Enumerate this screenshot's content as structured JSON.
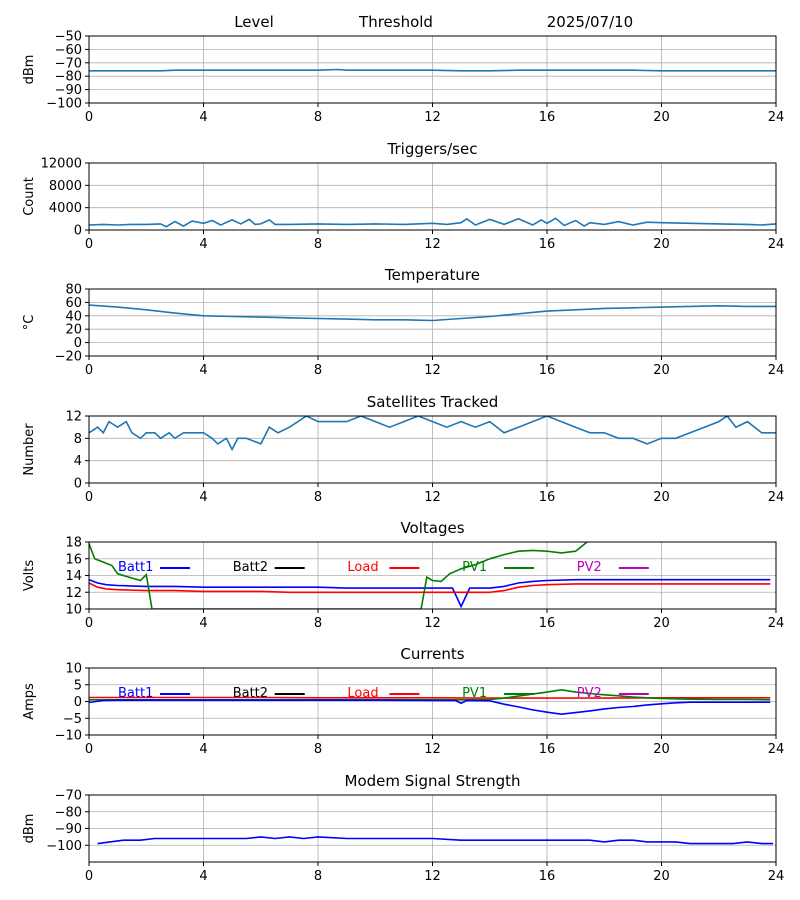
{
  "header": {
    "left": "Level",
    "middle": "Threshold",
    "right": "2025/07/10"
  },
  "x_ticks": [
    "0",
    "4",
    "8",
    "12",
    "16",
    "20",
    "24"
  ],
  "chart_data": [
    {
      "type": "line",
      "id": "level",
      "title": "",
      "ylabel": "dBm",
      "xlim": [
        0,
        24
      ],
      "ylim": [
        -100,
        -50
      ],
      "yticks": [
        -100,
        -90,
        -80,
        -70,
        -60,
        -50
      ],
      "ytick_labels": [
        "−100",
        "−90",
        "−80",
        "−70",
        "−60",
        "−50"
      ],
      "series": [
        {
          "color": "#1f77b4",
          "x": [
            0,
            1,
            2,
            2.5,
            3,
            4,
            5,
            6,
            7,
            8,
            8.7,
            9,
            10,
            11,
            12,
            13,
            14,
            15,
            16,
            17,
            18,
            19,
            20,
            21,
            22,
            23,
            24
          ],
          "y": [
            -76,
            -76,
            -76,
            -76,
            -75.5,
            -75.5,
            -75.5,
            -75.5,
            -75.5,
            -75.5,
            -75,
            -75.5,
            -75.5,
            -75.5,
            -75.5,
            -76,
            -76,
            -75.5,
            -75.5,
            -75.5,
            -75.5,
            -75.5,
            -76,
            -76,
            -76,
            -76,
            -76
          ]
        }
      ]
    },
    {
      "type": "line",
      "id": "triggers",
      "title": "Triggers/sec",
      "ylabel": "Count",
      "xlim": [
        0,
        24
      ],
      "ylim": [
        0,
        12000
      ],
      "yticks": [
        0,
        4000,
        8000,
        12000
      ],
      "ytick_labels": [
        "0",
        "4000",
        "8000",
        "12000"
      ],
      "series": [
        {
          "color": "#1f77b4",
          "x": [
            0,
            0.5,
            1,
            1.5,
            2,
            2.5,
            2.7,
            3,
            3.3,
            3.6,
            4,
            4.3,
            4.6,
            5,
            5.3,
            5.6,
            5.8,
            6,
            6.3,
            6.5,
            7,
            8,
            9,
            10,
            11,
            12,
            12.5,
            13,
            13.2,
            13.5,
            14,
            14.5,
            15,
            15.5,
            15.8,
            16,
            16.3,
            16.6,
            17,
            17.3,
            17.5,
            18,
            18.5,
            19,
            19.5,
            20,
            21,
            22,
            23,
            23.5,
            24
          ],
          "y": [
            900,
            1000,
            900,
            1000,
            1000,
            1100,
            600,
            1500,
            700,
            1600,
            1200,
            1700,
            900,
            1800,
            1100,
            1900,
            1000,
            1100,
            1800,
            1000,
            1000,
            1100,
            1000,
            1100,
            1000,
            1200,
            1000,
            1300,
            2000,
            900,
            1900,
            1000,
            2000,
            900,
            1800,
            1200,
            2100,
            800,
            1700,
            700,
            1300,
            1000,
            1500,
            900,
            1400,
            1300,
            1200,
            1100,
            1000,
            900,
            1100
          ]
        }
      ]
    },
    {
      "type": "line",
      "id": "temperature",
      "title": "Temperature",
      "ylabel": "°C",
      "xlim": [
        0,
        24
      ],
      "ylim": [
        -20,
        80
      ],
      "yticks": [
        -20,
        0,
        20,
        40,
        60,
        80
      ],
      "ytick_labels": [
        "−20",
        "0",
        "20",
        "40",
        "60",
        "80"
      ],
      "series": [
        {
          "color": "#1f77b4",
          "x": [
            0,
            1,
            2,
            3,
            4,
            5,
            6,
            7,
            8,
            9,
            10,
            11,
            12,
            13,
            14,
            15,
            16,
            17,
            18,
            19,
            20,
            21,
            22,
            23,
            24
          ],
          "y": [
            56,
            53,
            49,
            44,
            40,
            39,
            38,
            37,
            36,
            35,
            34,
            34,
            33,
            36,
            39,
            43,
            47,
            49,
            51,
            52,
            53,
            54,
            55,
            54,
            54
          ]
        }
      ]
    },
    {
      "type": "line",
      "id": "satellites",
      "title": "Satellites Tracked",
      "ylabel": "Number",
      "xlim": [
        0,
        24
      ],
      "ylim": [
        0,
        12
      ],
      "yticks": [
        0,
        4,
        8,
        12
      ],
      "ytick_labels": [
        "0",
        "4",
        "8",
        "12"
      ],
      "series": [
        {
          "color": "#1f77b4",
          "x": [
            0,
            0.3,
            0.5,
            0.7,
            1,
            1.3,
            1.5,
            1.8,
            2,
            2.3,
            2.5,
            2.8,
            3,
            3.3,
            3.6,
            4,
            4.3,
            4.5,
            4.8,
            5,
            5.2,
            5.5,
            6,
            6.3,
            6.6,
            7,
            7.3,
            7.6,
            8,
            8.5,
            9,
            9.5,
            10,
            10.5,
            11,
            11.5,
            12,
            12.5,
            13,
            13.5,
            14,
            14.5,
            15,
            15.5,
            16,
            16.5,
            17,
            17.5,
            18,
            18.5,
            19,
            19.5,
            20,
            20.5,
            21,
            21.5,
            22,
            22.3,
            22.6,
            23,
            23.5,
            24
          ],
          "y": [
            9,
            10,
            9,
            11,
            10,
            11,
            9,
            8,
            9,
            9,
            8,
            9,
            8,
            9,
            9,
            9,
            8,
            7,
            8,
            6,
            8,
            8,
            7,
            10,
            9,
            10,
            11,
            12,
            11,
            11,
            11,
            12,
            11,
            10,
            11,
            12,
            11,
            10,
            11,
            10,
            11,
            9,
            10,
            11,
            12,
            11,
            10,
            9,
            9,
            8,
            8,
            7,
            8,
            8,
            9,
            10,
            11,
            12,
            10,
            11,
            9,
            9
          ]
        }
      ]
    },
    {
      "type": "line",
      "id": "voltages",
      "title": "Voltages",
      "ylabel": "Volts",
      "xlim": [
        0,
        24
      ],
      "ylim": [
        10,
        18
      ],
      "yticks": [
        10,
        12,
        14,
        16,
        18
      ],
      "ytick_labels": [
        "10",
        "12",
        "14",
        "16",
        "18"
      ],
      "legend": [
        {
          "label": "Batt1",
          "color": "#0000ff"
        },
        {
          "label": "Batt2",
          "color": "#000000"
        },
        {
          "label": "Load",
          "color": "#ff0000"
        },
        {
          "label": "PV1",
          "color": "#008000"
        },
        {
          "label": "PV2",
          "color": "#bf00bf"
        }
      ],
      "series": [
        {
          "name": "Batt1",
          "color": "#0000ff",
          "x": [
            0,
            0.3,
            0.6,
            1,
            2,
            3,
            4,
            5,
            6,
            7,
            8,
            9,
            10,
            11,
            12,
            12.7,
            13,
            13.3,
            14,
            14.5,
            15,
            15.5,
            16,
            17,
            18,
            19,
            20,
            21,
            22,
            23,
            23.8
          ],
          "y": [
            13.5,
            13.1,
            12.9,
            12.8,
            12.7,
            12.7,
            12.6,
            12.6,
            12.6,
            12.6,
            12.6,
            12.5,
            12.5,
            12.5,
            12.5,
            12.5,
            10.3,
            12.5,
            12.5,
            12.7,
            13.1,
            13.3,
            13.4,
            13.5,
            13.5,
            13.5,
            13.5,
            13.5,
            13.5,
            13.5,
            13.5
          ]
        },
        {
          "name": "Load",
          "color": "#ff0000",
          "x": [
            0,
            0.3,
            0.6,
            1,
            2,
            3,
            4,
            5,
            6,
            7,
            8,
            9,
            10,
            11,
            12,
            13,
            14,
            14.5,
            15,
            15.5,
            16,
            17,
            18,
            19,
            20,
            21,
            22,
            23,
            23.8
          ],
          "y": [
            13.1,
            12.6,
            12.4,
            12.3,
            12.2,
            12.2,
            12.1,
            12.1,
            12.1,
            12.0,
            12.0,
            12.0,
            12.0,
            12.0,
            12.0,
            12.0,
            12.0,
            12.2,
            12.6,
            12.8,
            12.9,
            13.0,
            13.0,
            13.0,
            13.0,
            13.0,
            13.0,
            13.0,
            13.0
          ]
        },
        {
          "name": "PV1",
          "color": "#008000",
          "x": [
            0,
            0.2,
            0.5,
            0.8,
            1,
            1.3,
            1.6,
            1.8,
            2,
            2.2,
            11.6,
            11.8,
            12,
            12.3,
            12.6,
            13,
            13.5,
            14,
            14.5,
            15,
            15.5,
            16,
            16.5,
            17,
            17.4
          ],
          "y": [
            17.8,
            16.0,
            15.6,
            15.2,
            14.2,
            13.9,
            13.6,
            13.4,
            14.1,
            10.0,
            10.0,
            13.8,
            13.4,
            13.3,
            14.2,
            14.8,
            15.3,
            16.0,
            16.5,
            16.9,
            17.0,
            16.9,
            16.7,
            16.9,
            18.0
          ]
        }
      ]
    },
    {
      "type": "line",
      "id": "currents",
      "title": "Currents",
      "ylabel": "Amps",
      "xlim": [
        0,
        24
      ],
      "ylim": [
        -10,
        10
      ],
      "yticks": [
        -10,
        -5,
        0,
        5,
        10
      ],
      "ytick_labels": [
        "−10",
        "−5",
        "0",
        "5",
        "10"
      ],
      "legend": [
        {
          "label": "Batt1",
          "color": "#0000ff"
        },
        {
          "label": "Batt2",
          "color": "#000000"
        },
        {
          "label": "Load",
          "color": "#ff0000"
        },
        {
          "label": "PV1",
          "color": "#008000"
        },
        {
          "label": "PV2",
          "color": "#bf00bf"
        }
      ],
      "series": [
        {
          "name": "Load",
          "color": "#ff0000",
          "x": [
            0,
            2,
            4,
            6,
            8,
            10,
            12,
            14,
            16,
            18,
            20,
            22,
            23.8
          ],
          "y": [
            1.2,
            1.2,
            1.2,
            1.2,
            1.1,
            1.1,
            1.1,
            1.0,
            1.0,
            1.0,
            1.1,
            1.1,
            1.1
          ]
        },
        {
          "name": "PV1",
          "color": "#008000",
          "x": [
            0,
            2,
            4,
            6,
            8,
            10,
            12,
            13,
            14,
            14.5,
            15,
            15.5,
            16,
            16.5,
            17,
            17.5,
            18,
            18.5,
            19,
            19.5,
            20,
            21,
            22,
            23,
            23.8
          ],
          "y": [
            0.5,
            0.5,
            0.5,
            0.5,
            0.5,
            0.5,
            0.5,
            0.5,
            0.6,
            1.0,
            1.6,
            2.2,
            2.8,
            3.5,
            2.8,
            2.4,
            2.0,
            1.7,
            1.3,
            1.1,
            0.9,
            0.7,
            0.6,
            0.6,
            0.5
          ]
        },
        {
          "name": "Batt1",
          "color": "#0000ff",
          "x": [
            0,
            0.5,
            1,
            2,
            4,
            6,
            8,
            10,
            12,
            12.8,
            13,
            13.2,
            14,
            14.5,
            15,
            15.5,
            16,
            16.5,
            17,
            17.5,
            18,
            18.5,
            19,
            19.5,
            20,
            20.5,
            21,
            22,
            23,
            23.8
          ],
          "y": [
            -0.3,
            0.3,
            0.4,
            0.4,
            0.4,
            0.4,
            0.4,
            0.4,
            0.3,
            0.3,
            -0.5,
            0.3,
            0.2,
            -0.8,
            -1.6,
            -2.5,
            -3.2,
            -3.8,
            -3.3,
            -2.8,
            -2.2,
            -1.8,
            -1.5,
            -1.0,
            -0.7,
            -0.4,
            -0.2,
            -0.2,
            -0.2,
            -0.2
          ]
        }
      ]
    },
    {
      "type": "line",
      "id": "modem",
      "title": "Modem Signal Strength",
      "ylabel": "dBm",
      "xlim": [
        0,
        24
      ],
      "ylim": [
        -110,
        -70
      ],
      "yticks": [
        -100,
        -90,
        -80,
        -70
      ],
      "ytick_labels": [
        "−100",
        "−90",
        "−80",
        "−70"
      ],
      "series": [
        {
          "color": "#0000ff",
          "x": [
            0.3,
            1.2,
            1.8,
            2.3,
            3,
            4,
            5,
            5.5,
            6,
            6.5,
            7,
            7.5,
            8,
            9,
            10,
            11,
            12,
            13,
            14,
            15,
            16,
            17,
            17.5,
            18,
            18.5,
            19,
            19.5,
            20,
            20.5,
            21,
            22,
            22.5,
            23,
            23.5,
            23.9
          ],
          "y": [
            -99,
            -97,
            -97,
            -96,
            -96,
            -96,
            -96,
            -96,
            -95,
            -96,
            -95,
            -96,
            -95,
            -96,
            -96,
            -96,
            -96,
            -97,
            -97,
            -97,
            -97,
            -97,
            -97,
            -98,
            -97,
            -97,
            -98,
            -98,
            -98,
            -99,
            -99,
            -99,
            -98,
            -99,
            -99
          ]
        }
      ]
    }
  ]
}
